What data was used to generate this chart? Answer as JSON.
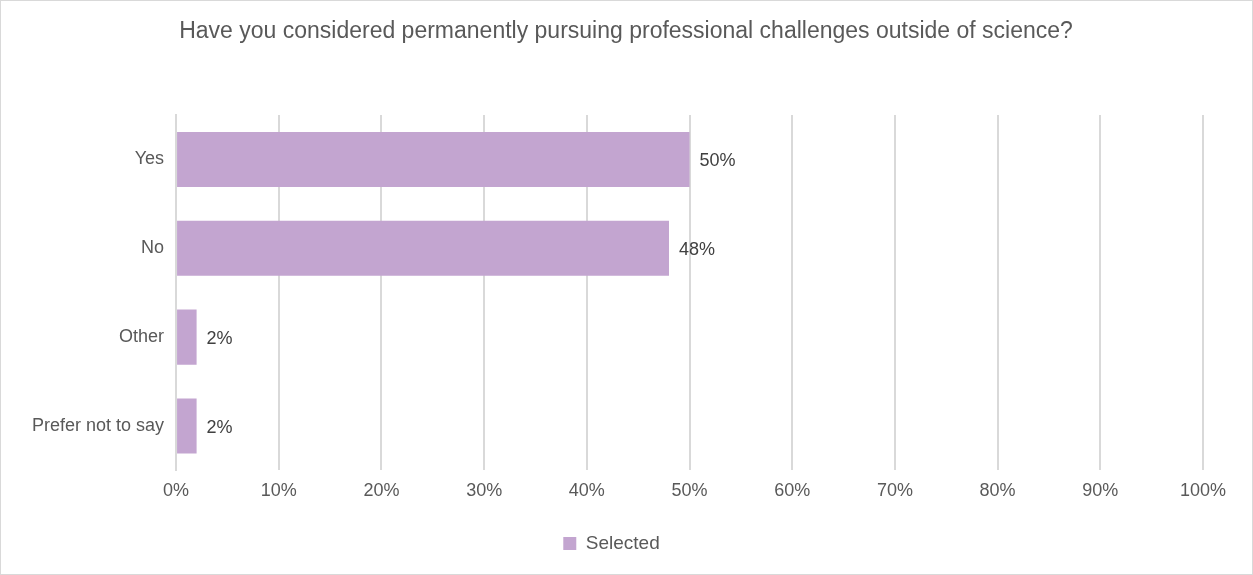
{
  "chart_data": {
    "type": "bar",
    "orientation": "horizontal",
    "title": "Have you considered permanently pursuing professional challenges outside of science?",
    "categories": [
      "Yes",
      "No",
      "Other",
      "Prefer not to say"
    ],
    "series": [
      {
        "name": "Selected",
        "color": "#c3a5d0",
        "values": [
          50,
          48,
          2,
          2
        ]
      }
    ],
    "xlim": [
      0,
      100
    ],
    "xticks": [
      {
        "value": 0,
        "label": "0%"
      },
      {
        "value": 10,
        "label": "10%"
      },
      {
        "value": 20,
        "label": "20%"
      },
      {
        "value": 30,
        "label": "30%"
      },
      {
        "value": 40,
        "label": "40%"
      },
      {
        "value": 50,
        "label": "50%"
      },
      {
        "value": 60,
        "label": "60%"
      },
      {
        "value": 70,
        "label": "70%"
      },
      {
        "value": 80,
        "label": "80%"
      },
      {
        "value": 90,
        "label": "90%"
      },
      {
        "value": 100,
        "label": "100%"
      }
    ],
    "value_labels": [
      "50%",
      "48%",
      "2%",
      "2%"
    ],
    "grid": "x",
    "legend": "bottom"
  }
}
